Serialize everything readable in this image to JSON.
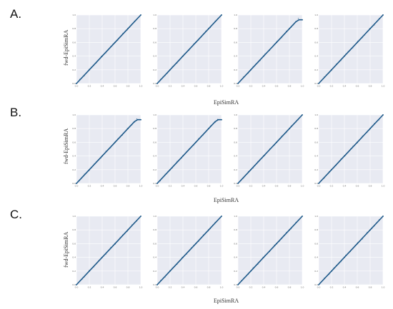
{
  "panel_labels": [
    "A.",
    "B.",
    "C."
  ],
  "axis_labels": {
    "A": {
      "x": "EpiSimRA",
      "y": "fwd-EpiSimRA"
    },
    "B": {
      "x": "EpiSimRA",
      "y": "fwd-EpiSimRA"
    },
    "C": {
      "x": "EpiSimRA",
      "y": "fwd-EpiSimRA"
    }
  },
  "chart_data": [
    {
      "type": "scatter",
      "panel": "A",
      "index": 1,
      "x": [
        0,
        0.2,
        0.4,
        0.6,
        0.8,
        1.0
      ],
      "y": [
        0,
        0.2,
        0.4,
        0.6,
        0.8,
        1.0
      ],
      "xlim": [
        0,
        1
      ],
      "ylim": [
        0,
        1
      ],
      "grid": true,
      "color": "#1f5a8a"
    },
    {
      "type": "scatter",
      "panel": "A",
      "index": 2,
      "x": [
        0,
        0.2,
        0.4,
        0.6,
        0.8,
        1.0
      ],
      "y": [
        0,
        0.2,
        0.4,
        0.6,
        0.8,
        1.0
      ],
      "xlim": [
        0,
        1
      ],
      "ylim": [
        0,
        1
      ],
      "grid": true,
      "color": "#1f5a8a"
    },
    {
      "type": "scatter",
      "panel": "A",
      "index": 3,
      "x": [
        0,
        0.2,
        0.4,
        0.6,
        0.8,
        0.9,
        0.95,
        1.0
      ],
      "y": [
        0,
        0.2,
        0.4,
        0.6,
        0.8,
        0.9,
        0.93,
        0.93
      ],
      "xlim": [
        0,
        1
      ],
      "ylim": [
        0,
        1
      ],
      "grid": true,
      "color": "#1f5a8a"
    },
    {
      "type": "scatter",
      "panel": "A",
      "index": 4,
      "x": [
        0,
        0.2,
        0.4,
        0.6,
        0.8,
        1.0
      ],
      "y": [
        0,
        0.2,
        0.4,
        0.6,
        0.8,
        1.0
      ],
      "xlim": [
        0,
        1
      ],
      "ylim": [
        0,
        1
      ],
      "grid": true,
      "color": "#1f5a8a"
    },
    {
      "type": "scatter",
      "panel": "B",
      "index": 1,
      "x": [
        0,
        0.2,
        0.4,
        0.6,
        0.8,
        0.9,
        0.95,
        1.0
      ],
      "y": [
        0,
        0.2,
        0.4,
        0.6,
        0.8,
        0.9,
        0.93,
        0.93
      ],
      "xlim": [
        0,
        1
      ],
      "ylim": [
        0,
        1
      ],
      "grid": true,
      "color": "#1f5a8a"
    },
    {
      "type": "scatter",
      "panel": "B",
      "index": 2,
      "x": [
        0,
        0.2,
        0.4,
        0.6,
        0.8,
        0.9,
        0.95,
        1.0
      ],
      "y": [
        0,
        0.2,
        0.4,
        0.6,
        0.8,
        0.9,
        0.93,
        0.93
      ],
      "xlim": [
        0,
        1
      ],
      "ylim": [
        0,
        1
      ],
      "grid": true,
      "color": "#1f5a8a"
    },
    {
      "type": "scatter",
      "panel": "B",
      "index": 3,
      "x": [
        0,
        0.2,
        0.4,
        0.6,
        0.8,
        1.0
      ],
      "y": [
        0,
        0.2,
        0.4,
        0.6,
        0.8,
        1.0
      ],
      "xlim": [
        0,
        1
      ],
      "ylim": [
        0,
        1
      ],
      "grid": true,
      "color": "#1f5a8a"
    },
    {
      "type": "scatter",
      "panel": "B",
      "index": 4,
      "x": [
        0,
        0.2,
        0.4,
        0.6,
        0.8,
        1.0
      ],
      "y": [
        0,
        0.2,
        0.4,
        0.6,
        0.8,
        1.0
      ],
      "xlim": [
        0,
        1
      ],
      "ylim": [
        0,
        1
      ],
      "grid": true,
      "color": "#1f5a8a"
    },
    {
      "type": "scatter",
      "panel": "C",
      "index": 1,
      "x": [
        0,
        0.2,
        0.4,
        0.6,
        0.8,
        1.0
      ],
      "y": [
        0,
        0.2,
        0.4,
        0.6,
        0.8,
        1.0
      ],
      "xlim": [
        0,
        1
      ],
      "ylim": [
        0,
        1
      ],
      "grid": true,
      "color": "#1f5a8a"
    },
    {
      "type": "scatter",
      "panel": "C",
      "index": 2,
      "x": [
        0,
        0.2,
        0.4,
        0.6,
        0.8,
        1.0
      ],
      "y": [
        0,
        0.2,
        0.4,
        0.6,
        0.8,
        1.0
      ],
      "xlim": [
        0,
        1
      ],
      "ylim": [
        0,
        1
      ],
      "grid": true,
      "color": "#1f5a8a"
    },
    {
      "type": "scatter",
      "panel": "C",
      "index": 3,
      "x": [
        0,
        0.2,
        0.4,
        0.6,
        0.8,
        1.0
      ],
      "y": [
        0,
        0.2,
        0.4,
        0.6,
        0.8,
        1.0
      ],
      "xlim": [
        0,
        1
      ],
      "ylim": [
        0,
        1
      ],
      "grid": true,
      "color": "#1f5a8a"
    },
    {
      "type": "scatter",
      "panel": "C",
      "index": 4,
      "x": [
        0,
        0.2,
        0.4,
        0.6,
        0.8,
        1.0
      ],
      "y": [
        0,
        0.2,
        0.4,
        0.6,
        0.8,
        1.0
      ],
      "xlim": [
        0,
        1
      ],
      "ylim": [
        0,
        1
      ],
      "grid": true,
      "color": "#1f5a8a"
    }
  ],
  "tick_values": [
    "0.0",
    "0.2",
    "0.4",
    "0.6",
    "0.8",
    "1.0"
  ]
}
